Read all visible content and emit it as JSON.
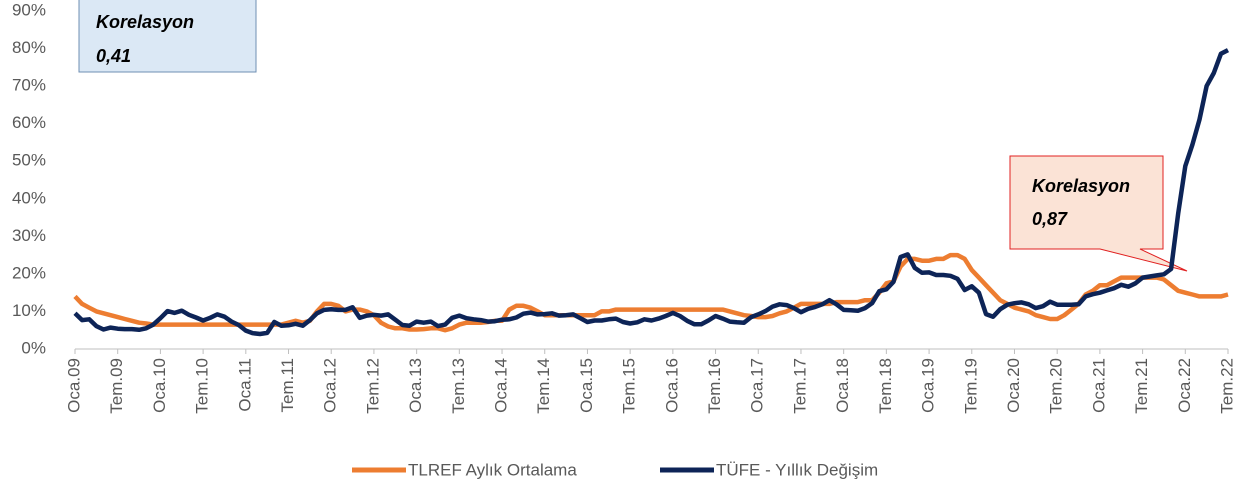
{
  "chart_data": {
    "type": "line",
    "categories": [
      "Oca.09",
      null,
      null,
      null,
      null,
      null,
      "Tem.09",
      null,
      null,
      null,
      null,
      null,
      "Oca.10",
      null,
      null,
      null,
      null,
      null,
      "Tem.10",
      null,
      null,
      null,
      null,
      null,
      "Oca.11",
      null,
      null,
      null,
      null,
      null,
      "Tem.11",
      null,
      null,
      null,
      null,
      null,
      "Oca.12",
      null,
      null,
      null,
      null,
      null,
      "Tem.12",
      null,
      null,
      null,
      null,
      null,
      "Oca.13",
      null,
      null,
      null,
      null,
      null,
      "Tem.13",
      null,
      null,
      null,
      null,
      null,
      "Oca.14",
      null,
      null,
      null,
      null,
      null,
      "Tem.14",
      null,
      null,
      null,
      null,
      null,
      "Oca.15",
      null,
      null,
      null,
      null,
      null,
      "Tem.15",
      null,
      null,
      null,
      null,
      null,
      "Oca.16",
      null,
      null,
      null,
      null,
      null,
      "Tem.16",
      null,
      null,
      null,
      null,
      null,
      "Oca.17",
      null,
      null,
      null,
      null,
      null,
      "Tem.17",
      null,
      null,
      null,
      null,
      null,
      "Oca.18",
      null,
      null,
      null,
      null,
      null,
      "Tem.18",
      null,
      null,
      null,
      null,
      null,
      "Oca.19",
      null,
      null,
      null,
      null,
      null,
      "Tem.19",
      null,
      null,
      null,
      null,
      null,
      "Oca.20",
      null,
      null,
      null,
      null,
      null,
      "Tem.20",
      null,
      null,
      null,
      null,
      null,
      "Oca.21",
      null,
      null,
      null,
      null,
      null,
      "Tem.21",
      null,
      null,
      null,
      null,
      null,
      "Oca.22",
      null,
      null,
      null,
      null,
      null,
      "Tem.22"
    ],
    "series": [
      {
        "name": "TLREF Aylık Ortalama",
        "color": "#ed7d31",
        "values": [
          14,
          12,
          11,
          10,
          9.5,
          9,
          8.5,
          8,
          7.5,
          7,
          6.8,
          6.5,
          6.5,
          6.5,
          6.5,
          6.5,
          6.5,
          6.5,
          6.5,
          6.5,
          6.5,
          6.5,
          6.5,
          6.5,
          6.5,
          6.5,
          6.5,
          6.5,
          6.5,
          6.5,
          7,
          7.5,
          7,
          7.5,
          10,
          12,
          12,
          11.5,
          10,
          10.5,
          10.5,
          10,
          9,
          7,
          6,
          5.5,
          5.5,
          5.2,
          5.2,
          5.3,
          5.5,
          5.5,
          5,
          5.5,
          6.5,
          7,
          7,
          7,
          7.2,
          7.5,
          7.5,
          10.5,
          11.5,
          11.5,
          11,
          10,
          9,
          9,
          9,
          9,
          9,
          9,
          9,
          9,
          10,
          10,
          10.5,
          10.5,
          10.5,
          10.5,
          10.5,
          10.5,
          10.5,
          10.5,
          10.5,
          10.5,
          10.5,
          10.5,
          10.5,
          10.5,
          10.5,
          10.5,
          10,
          9.5,
          9,
          8.8,
          8.5,
          8.5,
          8.8,
          9.5,
          10,
          11,
          12,
          12,
          12,
          12,
          12,
          12.5,
          12.5,
          12.5,
          12.5,
          13,
          13,
          15,
          17.5,
          18,
          22,
          24,
          24,
          23.5,
          23.5,
          24,
          24,
          25,
          25,
          24,
          21,
          19,
          17,
          15,
          13,
          12,
          11,
          10.5,
          10,
          9,
          8.5,
          8,
          8,
          9,
          10.5,
          12,
          14.5,
          15.5,
          17,
          17,
          18,
          19,
          19,
          19,
          19,
          19,
          19,
          18.5,
          17,
          15.5,
          15,
          14.5,
          14,
          14,
          14,
          14,
          14.5
        ]
      },
      {
        "name": "TÜFE - Yıllık Değişim",
        "color": "#0d2457",
        "values": [
          9.5,
          7.7,
          7.9,
          6.1,
          5.2,
          5.7,
          5.4,
          5.3,
          5.3,
          5.1,
          5.5,
          6.5,
          8.2,
          10.1,
          9.6,
          10.2,
          9.1,
          8.4,
          7.6,
          8.3,
          9.2,
          8.6,
          7.3,
          6.4,
          4.9,
          4.2,
          4.0,
          4.3,
          7.2,
          6.2,
          6.3,
          6.7,
          6.2,
          7.7,
          9.5,
          10.4,
          10.6,
          10.4,
          10.4,
          11.1,
          8.3,
          8.9,
          9.1,
          8.9,
          9.2,
          7.8,
          6.4,
          6.2,
          7.3,
          7.0,
          7.3,
          6.1,
          6.5,
          8.3,
          8.9,
          8.2,
          7.9,
          7.7,
          7.3,
          7.4,
          7.8,
          7.9,
          8.4,
          9.4,
          9.7,
          9.2,
          9.3,
          9.5,
          8.9,
          9.0,
          9.2,
          8.2,
          7.2,
          7.6,
          7.6,
          7.9,
          8.1,
          7.2,
          6.8,
          7.1,
          7.9,
          7.6,
          8.1,
          8.8,
          9.6,
          8.8,
          7.5,
          6.6,
          6.6,
          7.6,
          8.8,
          8.1,
          7.3,
          7.1,
          7.0,
          8.5,
          9.2,
          10.1,
          11.3,
          11.9,
          11.7,
          10.9,
          9.8,
          10.7,
          11.2,
          11.9,
          13.0,
          11.9,
          10.4,
          10.3,
          10.2,
          10.9,
          12.2,
          15.4,
          15.9,
          17.9,
          24.5,
          25.2,
          21.6,
          20.3,
          20.4,
          19.7,
          19.7,
          19.5,
          18.7,
          15.7,
          16.7,
          15.0,
          9.3,
          8.6,
          10.6,
          11.8,
          12.2,
          12.4,
          11.9,
          10.9,
          11.4,
          12.6,
          11.8,
          11.8,
          11.8,
          11.9,
          14.0,
          14.6,
          15.0,
          15.6,
          16.2,
          17.1,
          16.6,
          17.5,
          19.0,
          19.3,
          19.6,
          19.9,
          21.3,
          36.1,
          48.7,
          54.4,
          61.1,
          70.0,
          73.5,
          78.6,
          79.6
        ]
      }
    ],
    "ylim": [
      0,
      90
    ],
    "yticks": [
      {
        "value": 0,
        "label": "0%"
      },
      {
        "value": 10,
        "label": "10%"
      },
      {
        "value": 20,
        "label": "20%"
      },
      {
        "value": 30,
        "label": "30%"
      },
      {
        "value": 40,
        "label": "40%"
      },
      {
        "value": 50,
        "label": "50%"
      },
      {
        "value": 60,
        "label": "60%"
      },
      {
        "value": 70,
        "label": "70%"
      },
      {
        "value": 80,
        "label": "80%"
      },
      {
        "value": 90,
        "label": "90%"
      }
    ],
    "annotations": [
      {
        "lines": [
          "Korelasyon",
          "0,41"
        ]
      },
      {
        "lines": [
          "Korelasyon",
          "0,87"
        ]
      }
    ],
    "legend": "bottom"
  }
}
